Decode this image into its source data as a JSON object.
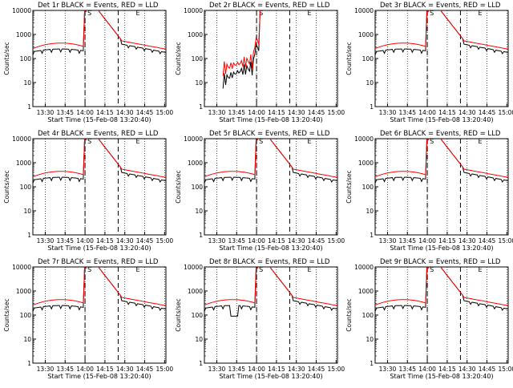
{
  "chart_data": [
    {
      "type": "line",
      "title": "Det 1r BLACK = Events, RED = LLD",
      "xlabel": "Start Time (15-Feb-08 13:20:40)",
      "ylabel": "Counts/sec",
      "variant": "A",
      "x_ticks": [
        "13:30",
        "13:45",
        "14:00",
        "14:15",
        "14:30",
        "14:45",
        "15:00"
      ],
      "y_ticks": [
        "1",
        "10",
        "100",
        "1000",
        "10000"
      ],
      "ylim": [
        1,
        10000
      ],
      "xlim": [
        "13:20:40",
        "15:01:00"
      ],
      "events": [
        {
          "time": "14:00",
          "style": "dashed"
        },
        {
          "time": "14:25",
          "style": "dashed"
        }
      ],
      "annotations": [
        "S",
        "E"
      ],
      "series": [
        {
          "name": "BLACK = Events",
          "color": "#000000"
        },
        {
          "name": "RED = LLD",
          "color": "#ff0000"
        }
      ]
    },
    {
      "type": "line",
      "title": "Det 2r BLACK = Events, RED = LLD",
      "xlabel": "Start Time (15-Feb-08 13:20:40)",
      "ylabel": "Counts/sec",
      "variant": "B",
      "x_ticks": [
        "13:30",
        "13:45",
        "14:00",
        "14:15",
        "14:30",
        "14:45",
        "15:00"
      ],
      "y_ticks": [
        "1",
        "10",
        "100",
        "1000",
        "10000"
      ],
      "ylim": [
        1,
        10000
      ],
      "xlim": [
        "13:20:40",
        "15:01:00"
      ],
      "events": [
        {
          "time": "14:00",
          "style": "dashed"
        },
        {
          "time": "14:25",
          "style": "dashed"
        }
      ],
      "annotations": [
        "S",
        "E"
      ],
      "series": [
        {
          "name": "BLACK = Events",
          "color": "#000000"
        },
        {
          "name": "RED = LLD",
          "color": "#ff0000"
        }
      ]
    },
    {
      "type": "line",
      "title": "Det 3r BLACK = Events, RED = LLD",
      "xlabel": "Start Time (15-Feb-08 13:20:40)",
      "ylabel": "Counts/sec",
      "variant": "A",
      "x_ticks": [
        "13:30",
        "13:45",
        "14:00",
        "14:15",
        "14:30",
        "14:45",
        "15:00"
      ],
      "y_ticks": [
        "1",
        "10",
        "100",
        "1000",
        "10000"
      ],
      "ylim": [
        1,
        10000
      ],
      "xlim": [
        "13:20:40",
        "15:01:00"
      ],
      "events": [
        {
          "time": "14:00",
          "style": "dashed"
        },
        {
          "time": "14:25",
          "style": "dashed"
        }
      ],
      "annotations": [
        "S",
        "E"
      ],
      "series": [
        {
          "name": "BLACK = Events",
          "color": "#000000"
        },
        {
          "name": "RED = LLD",
          "color": "#ff0000"
        }
      ]
    },
    {
      "type": "line",
      "title": "Det 4r BLACK = Events, RED = LLD",
      "xlabel": "Start Time (15-Feb-08 13:20:40)",
      "ylabel": "Counts/sec",
      "variant": "A",
      "x_ticks": [
        "13:30",
        "13:45",
        "14:00",
        "14:15",
        "14:30",
        "14:45",
        "15:00"
      ],
      "y_ticks": [
        "1",
        "10",
        "100",
        "1000",
        "10000"
      ],
      "ylim": [
        1,
        10000
      ],
      "xlim": [
        "13:20:40",
        "15:01:00"
      ],
      "events": [
        {
          "time": "14:00",
          "style": "dashed"
        },
        {
          "time": "14:25",
          "style": "dashed"
        }
      ],
      "annotations": [
        "S",
        "E"
      ],
      "series": [
        {
          "name": "BLACK = Events",
          "color": "#000000"
        },
        {
          "name": "RED = LLD",
          "color": "#ff0000"
        }
      ]
    },
    {
      "type": "line",
      "title": "Det 5r BLACK = Events, RED = LLD",
      "xlabel": "Start Time (15-Feb-08 13:20:40)",
      "ylabel": "Counts/sec",
      "variant": "A",
      "x_ticks": [
        "13:30",
        "13:45",
        "14:00",
        "14:15",
        "14:30",
        "14:45",
        "15:00"
      ],
      "y_ticks": [
        "1",
        "10",
        "100",
        "1000",
        "10000"
      ],
      "ylim": [
        1,
        10000
      ],
      "xlim": [
        "13:20:40",
        "15:01:00"
      ],
      "events": [
        {
          "time": "14:00",
          "style": "dashed"
        },
        {
          "time": "14:25",
          "style": "dashed"
        }
      ],
      "annotations": [
        "S",
        "E"
      ],
      "series": [
        {
          "name": "BLACK = Events",
          "color": "#000000"
        },
        {
          "name": "RED = LLD",
          "color": "#ff0000"
        }
      ]
    },
    {
      "type": "line",
      "title": "Det 6r BLACK = Events, RED = LLD",
      "xlabel": "Start Time (15-Feb-08 13:20:40)",
      "ylabel": "Counts/sec",
      "variant": "A",
      "x_ticks": [
        "13:30",
        "13:45",
        "14:00",
        "14:15",
        "14:30",
        "14:45",
        "15:00"
      ],
      "y_ticks": [
        "1",
        "10",
        "100",
        "1000",
        "10000"
      ],
      "ylim": [
        1,
        10000
      ],
      "xlim": [
        "13:20:40",
        "15:01:00"
      ],
      "events": [
        {
          "time": "14:00",
          "style": "dashed"
        },
        {
          "time": "14:25",
          "style": "dashed"
        }
      ],
      "annotations": [
        "S",
        "E"
      ],
      "series": [
        {
          "name": "BLACK = Events",
          "color": "#000000"
        },
        {
          "name": "RED = LLD",
          "color": "#ff0000"
        }
      ]
    },
    {
      "type": "line",
      "title": "Det 7r BLACK = Events, RED = LLD",
      "xlabel": "Start Time (15-Feb-08 13:20:40)",
      "ylabel": "Counts/sec",
      "variant": "A",
      "x_ticks": [
        "13:30",
        "13:45",
        "14:00",
        "14:15",
        "14:30",
        "14:45",
        "15:00"
      ],
      "y_ticks": [
        "1",
        "10",
        "100",
        "1000",
        "10000"
      ],
      "ylim": [
        1,
        10000
      ],
      "xlim": [
        "13:20:40",
        "15:01:00"
      ],
      "events": [
        {
          "time": "14:00",
          "style": "dashed"
        },
        {
          "time": "14:25",
          "style": "dashed"
        }
      ],
      "annotations": [
        "S",
        "E"
      ],
      "series": [
        {
          "name": "BLACK = Events",
          "color": "#000000"
        },
        {
          "name": "RED = LLD",
          "color": "#ff0000"
        }
      ]
    },
    {
      "type": "line",
      "title": "Det 8r BLACK = Events, RED = LLD",
      "xlabel": "Start Time (15-Feb-08 13:20:40)",
      "ylabel": "Counts/sec",
      "variant": "C",
      "x_ticks": [
        "13:30",
        "13:45",
        "14:00",
        "14:15",
        "14:30",
        "14:45",
        "15:00"
      ],
      "y_ticks": [
        "1",
        "10",
        "100",
        "1000",
        "10000"
      ],
      "ylim": [
        1,
        10000
      ],
      "xlim": [
        "13:20:40",
        "15:01:00"
      ],
      "events": [
        {
          "time": "14:00",
          "style": "dashed"
        },
        {
          "time": "14:25",
          "style": "dashed"
        }
      ],
      "annotations": [
        "S",
        "E"
      ],
      "series": [
        {
          "name": "BLACK = Events",
          "color": "#000000"
        },
        {
          "name": "RED = LLD",
          "color": "#ff0000"
        }
      ]
    },
    {
      "type": "line",
      "title": "Det 9r BLACK = Events, RED = LLD",
      "xlabel": "Start Time (15-Feb-08 13:20:40)",
      "ylabel": "Counts/sec",
      "variant": "A",
      "x_ticks": [
        "13:30",
        "13:45",
        "14:00",
        "14:15",
        "14:30",
        "14:45",
        "15:00"
      ],
      "y_ticks": [
        "1",
        "10",
        "100",
        "1000",
        "10000"
      ],
      "ylim": [
        1,
        10000
      ],
      "xlim": [
        "13:20:40",
        "15:01:00"
      ],
      "events": [
        {
          "time": "14:00",
          "style": "dashed"
        },
        {
          "time": "14:25",
          "style": "dashed"
        }
      ],
      "annotations": [
        "S",
        "E"
      ],
      "series": [
        {
          "name": "BLACK = Events",
          "color": "#000000"
        },
        {
          "name": "RED = LLD",
          "color": "#ff0000"
        }
      ]
    }
  ]
}
